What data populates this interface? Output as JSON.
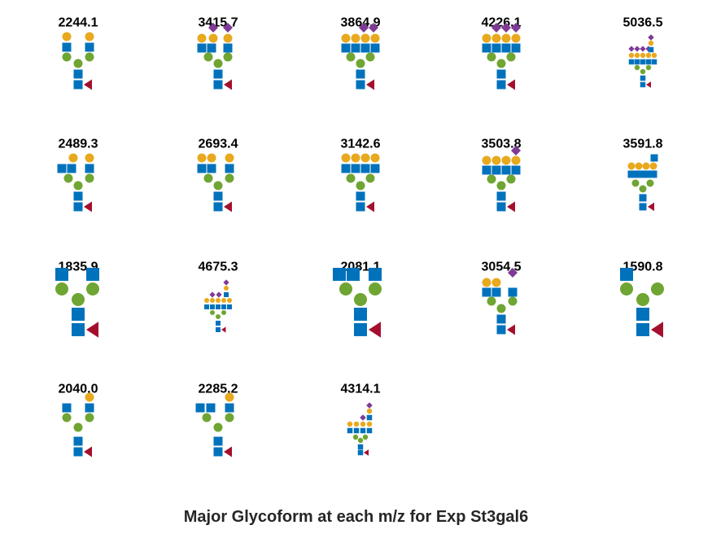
{
  "caption": "Major Glycoform at each m/z for Exp St3gal6",
  "colors": {
    "galactose": "#E8A91E",
    "glcnac": "#0072BC",
    "mannose": "#6FA532",
    "fucose": "#A50F2E",
    "neuac": "#7E3A95"
  },
  "icons": {
    "galactose": "yellow-circle",
    "glcnac": "blue-square",
    "mannose": "green-circle",
    "fucose": "red-triangle",
    "neuac": "purple-diamond"
  },
  "glycans": [
    {
      "mz": "2244.1",
      "structure": "A"
    },
    {
      "mz": "3415.7",
      "structure": "B"
    },
    {
      "mz": "3864.9",
      "structure": "C"
    },
    {
      "mz": "4226.1",
      "structure": "D"
    },
    {
      "mz": "5036.5",
      "structure": "E"
    },
    {
      "mz": "2489.3",
      "structure": "F"
    },
    {
      "mz": "2693.4",
      "structure": "G"
    },
    {
      "mz": "3142.6",
      "structure": "H"
    },
    {
      "mz": "3503.8",
      "structure": "I"
    },
    {
      "mz": "3591.8",
      "structure": "J"
    },
    {
      "mz": "1835.9",
      "structure": "K"
    },
    {
      "mz": "4675.3",
      "structure": "L"
    },
    {
      "mz": "2081.1",
      "structure": "M"
    },
    {
      "mz": "3054.5",
      "structure": "N"
    },
    {
      "mz": "1590.8",
      "structure": "O"
    },
    {
      "mz": "2040.0",
      "structure": "P"
    },
    {
      "mz": "2285.2",
      "structure": "Q"
    },
    {
      "mz": "4314.1",
      "structure": "R"
    }
  ]
}
